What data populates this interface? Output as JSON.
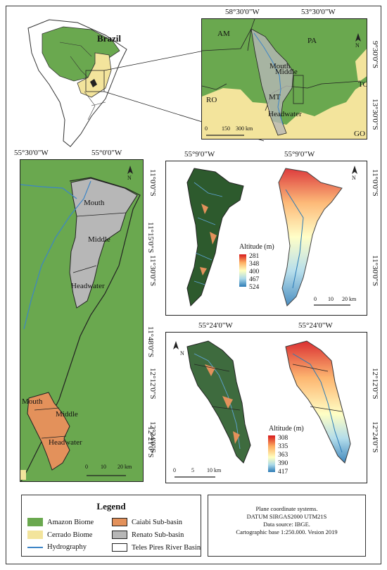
{
  "colors": {
    "amazon": "#6aa84f",
    "cerrado": "#f3e49c",
    "hydro": "#3d85c6",
    "caiabi": "#e3915b",
    "renato": "#b7b7b7",
    "teles_outline": "#222222"
  },
  "top_map": {
    "country_label": "Brazil",
    "coords_top": [
      "58°30'0\"W",
      "53°30'0\"W"
    ],
    "coords_right": [
      "9°30'0\"S",
      "13°30'0\"S"
    ],
    "state_labels": [
      "AM",
      "PA",
      "RO",
      "MT",
      "TO",
      "GO"
    ],
    "sub_labels": [
      "Mouth",
      "Middle",
      "Headwater"
    ],
    "scale_labels": [
      "0",
      "150",
      "300 km"
    ],
    "north": "N"
  },
  "left_map": {
    "coords_top": [
      "55°30'0\"W",
      "55°0'0\"W"
    ],
    "coords_right": [
      "11°15'0\"S",
      "11°48'0\"S",
      "12°21'0\"S"
    ],
    "renato_labels": [
      "Mouth",
      "Middle",
      "Headwater"
    ],
    "caiabi_labels": [
      "Mouth",
      "Middle",
      "Headwater"
    ],
    "scale_labels": [
      "0",
      "10",
      "20 km"
    ],
    "north": "N"
  },
  "renato_altitude": {
    "coords_top": [
      "55°9'0\"W",
      "55°9'0\"W"
    ],
    "coords_left": [
      "11°0'0\"S",
      "11°30'0\"S"
    ],
    "coords_right": [
      "11°0'0\"S",
      "11°30'0\"S"
    ],
    "legend_title": "Altitude (m)",
    "legend_values": [
      "281",
      "348",
      "400",
      "467",
      "524"
    ],
    "legend_colors": [
      "#2c7bb6",
      "#abd9e9",
      "#ffffbf",
      "#fdae61",
      "#d7191c"
    ],
    "scale_labels": [
      "0",
      "10",
      "20 km"
    ],
    "north": "N"
  },
  "caiabi_altitude": {
    "coords_top": [
      "55°24'0\"W",
      "55°24'0\"W"
    ],
    "coords_left": [
      "12°12'0\"S",
      "12°24'0\"S"
    ],
    "coords_right": [
      "12°12'0\"S",
      "12°24'0\"S"
    ],
    "legend_title": "Altitude (m)",
    "legend_values": [
      "308",
      "335",
      "363",
      "390",
      "417"
    ],
    "legend_colors": [
      "#2c7bb6",
      "#abd9e9",
      "#ffffbf",
      "#fdae61",
      "#d7191c"
    ],
    "scale_labels": [
      "0",
      "5",
      "10 km"
    ],
    "north": "N"
  },
  "legend": {
    "title": "Legend",
    "items": [
      {
        "label": "Amazon Biome",
        "color": "#6aa84f"
      },
      {
        "label": "Caiabi Sub-basin",
        "color": "#e3915b"
      },
      {
        "label": "Cerrado Biome",
        "color": "#f3e49c"
      },
      {
        "label": "Renato Sub-basin",
        "color": "#b7b7b7"
      },
      {
        "label": "Hydrography",
        "color": "#3d85c6"
      },
      {
        "label": "Teles Pires River Basin",
        "color": "#ffffff"
      }
    ]
  },
  "info": {
    "lines": [
      "Plane coordinate systems.",
      "DATUM SIRGAS2000 UTM21S",
      "Data source: IBGE.",
      "Cartographic base 1:250.000. Vesion 2019"
    ]
  }
}
